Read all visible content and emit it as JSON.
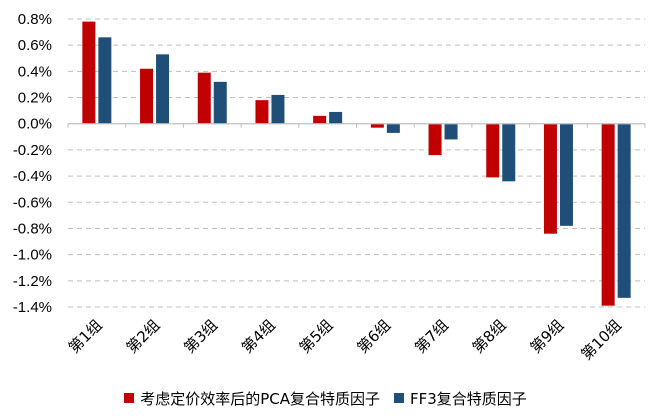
{
  "chart_data": {
    "type": "bar",
    "categories": [
      "第1组",
      "第2组",
      "第3组",
      "第4组",
      "第5组",
      "第6组",
      "第7组",
      "第8组",
      "第9组",
      "第10组"
    ],
    "series": [
      {
        "name": "考虑定价效率后的PCA复合特质因子",
        "color": "#C00000",
        "values": [
          0.78,
          0.42,
          0.39,
          0.18,
          0.06,
          -0.03,
          -0.24,
          -0.41,
          -0.84,
          -1.39
        ]
      },
      {
        "name": "FF3复合特质因子",
        "color": "#1F4E79",
        "values": [
          0.66,
          0.53,
          0.32,
          0.22,
          0.09,
          -0.07,
          -0.12,
          -0.44,
          -0.78,
          -1.33
        ]
      }
    ],
    "yticks": [
      "0.8%",
      "0.6%",
      "0.4%",
      "0.2%",
      "0.0%",
      "-0.2%",
      "-0.4%",
      "-0.6%",
      "-0.8%",
      "-1.0%",
      "-1.2%",
      "-1.4%"
    ],
    "ylim": [
      -1.4,
      0.8
    ],
    "grid": true,
    "legend_position": "bottom"
  }
}
